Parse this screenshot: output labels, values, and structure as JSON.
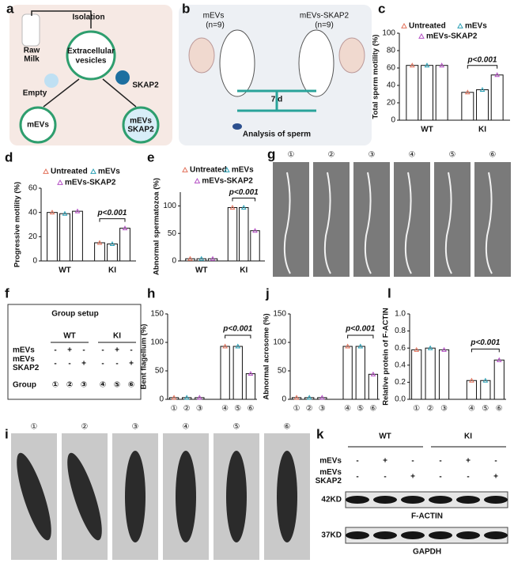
{
  "panel_letters": [
    "a",
    "b",
    "c",
    "d",
    "e",
    "f",
    "g",
    "h",
    "i",
    "j",
    "k",
    "l"
  ],
  "panel_a": {
    "raw_milk": [
      "Raw",
      "Milk"
    ],
    "isolation": "Isolation",
    "vesicles": [
      "Extracellular",
      "vesicles"
    ],
    "empty": "Empty",
    "skap2": "SKAP2",
    "mevs": "mEVs",
    "mevs_skap2": [
      "mEVs",
      "SKAP2"
    ]
  },
  "panel_b": {
    "left": [
      "mEVs",
      "(n=9)"
    ],
    "right": [
      "mEVs-SKAP2",
      "(n=9)"
    ],
    "days": "7 d",
    "analysis": "Analysis of sperm"
  },
  "chart_data": [
    {
      "type": "bar",
      "ylabel": "Total sperm motility (%)",
      "categories": [
        "WT",
        "KI"
      ],
      "series": [
        {
          "name": "Untreated",
          "color": "#e2725b",
          "values": [
            63,
            32
          ]
        },
        {
          "name": "mEVs",
          "color": "#2aa0b5",
          "values": [
            63,
            35
          ]
        },
        {
          "name": "mEVs-SKAP2",
          "color": "#b44fc4",
          "values": [
            63,
            52
          ]
        }
      ],
      "ylim": [
        0,
        100
      ],
      "yticks": [
        0,
        20,
        40,
        60,
        80,
        100
      ],
      "annotation": "p<0.001"
    },
    {
      "type": "bar",
      "ylabel": "Progressive motility (%)",
      "categories": [
        "WT",
        "KI"
      ],
      "series": [
        {
          "name": "Untreated",
          "color": "#e2725b",
          "values": [
            40,
            15
          ]
        },
        {
          "name": "mEVs",
          "color": "#2aa0b5",
          "values": [
            39,
            14
          ]
        },
        {
          "name": "mEVs-SKAP2",
          "color": "#b44fc4",
          "values": [
            41,
            27
          ]
        }
      ],
      "ylim": [
        0,
        60
      ],
      "yticks": [
        0,
        20,
        40,
        60
      ],
      "annotation": "p<0.001"
    },
    {
      "type": "bar",
      "ylabel": "Abnormal spermatozoa (%)",
      "categories": [
        "WT",
        "KI"
      ],
      "series": [
        {
          "name": "Untreated",
          "color": "#e2725b",
          "values": [
            4,
            97
          ]
        },
        {
          "name": "mEVs",
          "color": "#2aa0b5",
          "values": [
            4,
            97
          ]
        },
        {
          "name": "mEVs-SKAP2",
          "color": "#b44fc4",
          "values": [
            4,
            55
          ]
        }
      ],
      "ylim": [
        0,
        125
      ],
      "yticks": [
        0,
        50,
        100
      ],
      "annotation": "p<0.001"
    },
    {
      "type": "bar",
      "ylabel": "Bent flagellum (%)",
      "categories": [
        "①",
        "②",
        "③",
        "④",
        "⑤",
        "⑥"
      ],
      "values": [
        3,
        3,
        3,
        93,
        93,
        45
      ],
      "colors": [
        "#e2725b",
        "#2aa0b5",
        "#b44fc4",
        "#e2725b",
        "#2aa0b5",
        "#b44fc4"
      ],
      "ylim": [
        0,
        150
      ],
      "yticks": [
        0,
        50,
        100,
        150
      ],
      "annotation": "p<0.001"
    },
    {
      "type": "bar",
      "ylabel": "Abnormal acrosome (%)",
      "categories": [
        "①",
        "②",
        "③",
        "④",
        "⑤",
        "⑥"
      ],
      "values": [
        3,
        3,
        3,
        93,
        93,
        44
      ],
      "colors": [
        "#e2725b",
        "#2aa0b5",
        "#b44fc4",
        "#e2725b",
        "#2aa0b5",
        "#b44fc4"
      ],
      "ylim": [
        0,
        150
      ],
      "yticks": [
        0,
        50,
        100,
        150
      ],
      "annotation": "p<0.001"
    },
    {
      "type": "bar",
      "ylabel": "Relative protein of F-ACTIN",
      "categories": [
        "①",
        "②",
        "③",
        "④",
        "⑤",
        "⑥"
      ],
      "values": [
        0.58,
        0.6,
        0.58,
        0.22,
        0.22,
        0.46
      ],
      "colors": [
        "#e2725b",
        "#2aa0b5",
        "#b44fc4",
        "#e2725b",
        "#2aa0b5",
        "#b44fc4"
      ],
      "ylim": [
        0,
        1.0
      ],
      "yticks": [
        {
          "value": 0,
          "label": "0.0"
        },
        0.2,
        0.4,
        0.6,
        0.8,
        {
          "value": 1,
          "label": "1.0"
        }
      ],
      "annotation": "p<0.001"
    }
  ],
  "panel_f": {
    "title": "Group setup",
    "headers": [
      "WT",
      "KI"
    ],
    "rows": [
      {
        "label": [
          "mEVs"
        ],
        "marks": [
          "-",
          "+",
          "-",
          "-",
          "+",
          "-"
        ]
      },
      {
        "label": [
          "mEVs",
          "SKAP2"
        ],
        "marks": [
          "-",
          "-",
          "+",
          "-",
          "-",
          "+"
        ]
      },
      {
        "label": [
          "Group"
        ],
        "marks": [
          "①",
          "②",
          "③",
          "④",
          "⑤",
          "⑥"
        ]
      }
    ]
  },
  "panel_g": {
    "labels": [
      "①",
      "②",
      "③",
      "④",
      "⑤",
      "⑥"
    ]
  },
  "panel_i": {
    "labels": [
      "①",
      "②",
      "③",
      "④",
      "⑤",
      "⑥"
    ]
  },
  "panel_k": {
    "headers": [
      "WT",
      "KI"
    ],
    "rows": [
      {
        "label": [
          "mEVs"
        ],
        "marks": [
          "-",
          "+",
          "-",
          "-",
          "+",
          "-"
        ]
      },
      {
        "label": [
          "mEVs",
          "SKAP2"
        ],
        "marks": [
          "-",
          "-",
          "+",
          "-",
          "-",
          "+"
        ]
      }
    ],
    "blots": [
      {
        "size": "42KD",
        "name": "F-ACTIN"
      },
      {
        "size": "37KD",
        "name": "GAPDH"
      }
    ]
  }
}
